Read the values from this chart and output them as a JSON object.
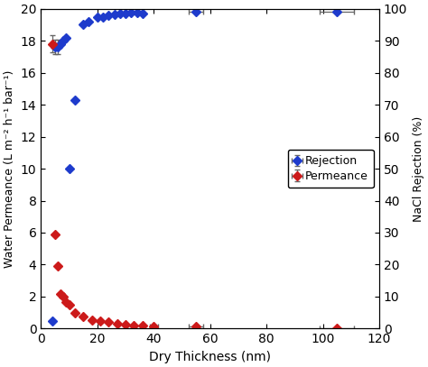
{
  "title": "",
  "xlabel": "Dry Thickness (nm)",
  "ylabel_left": "Water Permeance (L m⁻² h⁻¹ bar⁻¹)",
  "ylabel_right": "NaCl Rejection (%)",
  "xlim": [
    0,
    120
  ],
  "ylim_left": [
    0,
    20
  ],
  "ylim_right": [
    0,
    100
  ],
  "xticks": [
    0,
    20,
    40,
    60,
    80,
    100,
    120
  ],
  "yticks_left": [
    0,
    2,
    4,
    6,
    8,
    10,
    12,
    14,
    16,
    18,
    20
  ],
  "yticks_right": [
    0,
    10,
    20,
    30,
    40,
    50,
    60,
    70,
    80,
    90,
    100
  ],
  "rejection_x": [
    4,
    5,
    6,
    7,
    8,
    9,
    10,
    12,
    15,
    17,
    20,
    22,
    24,
    26,
    28,
    30,
    32,
    34,
    36,
    55,
    105
  ],
  "rejection_y": [
    0.5,
    17.6,
    17.6,
    17.8,
    18.0,
    18.2,
    10.0,
    14.3,
    19.0,
    19.2,
    19.5,
    19.5,
    19.6,
    19.65,
    19.7,
    19.7,
    19.75,
    19.75,
    19.7,
    19.8,
    19.8
  ],
  "rejection_xerr_left": [
    0,
    0,
    0,
    0,
    0,
    0,
    0,
    0,
    0,
    0,
    0,
    0,
    0,
    0,
    0,
    0,
    0,
    0,
    0,
    2.5,
    6
  ],
  "rejection_xerr_right": [
    0,
    0,
    0,
    0,
    0,
    0,
    0,
    0,
    0,
    0,
    0,
    0,
    0,
    0,
    0,
    0,
    0,
    0,
    0,
    2.5,
    6
  ],
  "rejection_yerr": [
    0,
    0.45,
    0.45,
    0,
    0,
    0,
    0,
    0,
    0,
    0,
    0,
    0,
    0,
    0,
    0,
    0,
    0,
    0,
    0,
    0,
    0
  ],
  "permeance_x": [
    5,
    6,
    7,
    8,
    9,
    10,
    12,
    15,
    18,
    21,
    24,
    27,
    30,
    33,
    36,
    40,
    55,
    105
  ],
  "permeance_y": [
    5.9,
    3.9,
    2.15,
    2.0,
    1.65,
    1.5,
    1.0,
    0.75,
    0.55,
    0.45,
    0.4,
    0.32,
    0.25,
    0.22,
    0.18,
    0.15,
    0.12,
    0.05
  ],
  "permeance_xerr_left": [
    0,
    0,
    0,
    0,
    0,
    0,
    0,
    0,
    0,
    0,
    0,
    0,
    0,
    0,
    0,
    1.5,
    2.5,
    6
  ],
  "permeance_xerr_right": [
    0,
    0,
    0,
    0,
    0,
    0,
    0,
    0,
    0,
    0,
    0,
    0,
    0,
    0,
    0,
    1.5,
    2.5,
    6
  ],
  "permeance_yerr": [
    0,
    0,
    0,
    0,
    0,
    0,
    0,
    0,
    0,
    0,
    0,
    0,
    0,
    0,
    0,
    0,
    0,
    0
  ],
  "permeance_x_low": [
    4
  ],
  "permeance_y_low": [
    17.8
  ],
  "permeance_yerr_low": [
    0.55
  ],
  "rejection_color": "#1e3bcc",
  "permeance_color": "#cc1a1a",
  "marker_size": 5,
  "legend_loc": "center right",
  "background_color": "#ffffff",
  "ecolor": "#666666",
  "figsize": [
    4.74,
    4.07
  ],
  "dpi": 100
}
